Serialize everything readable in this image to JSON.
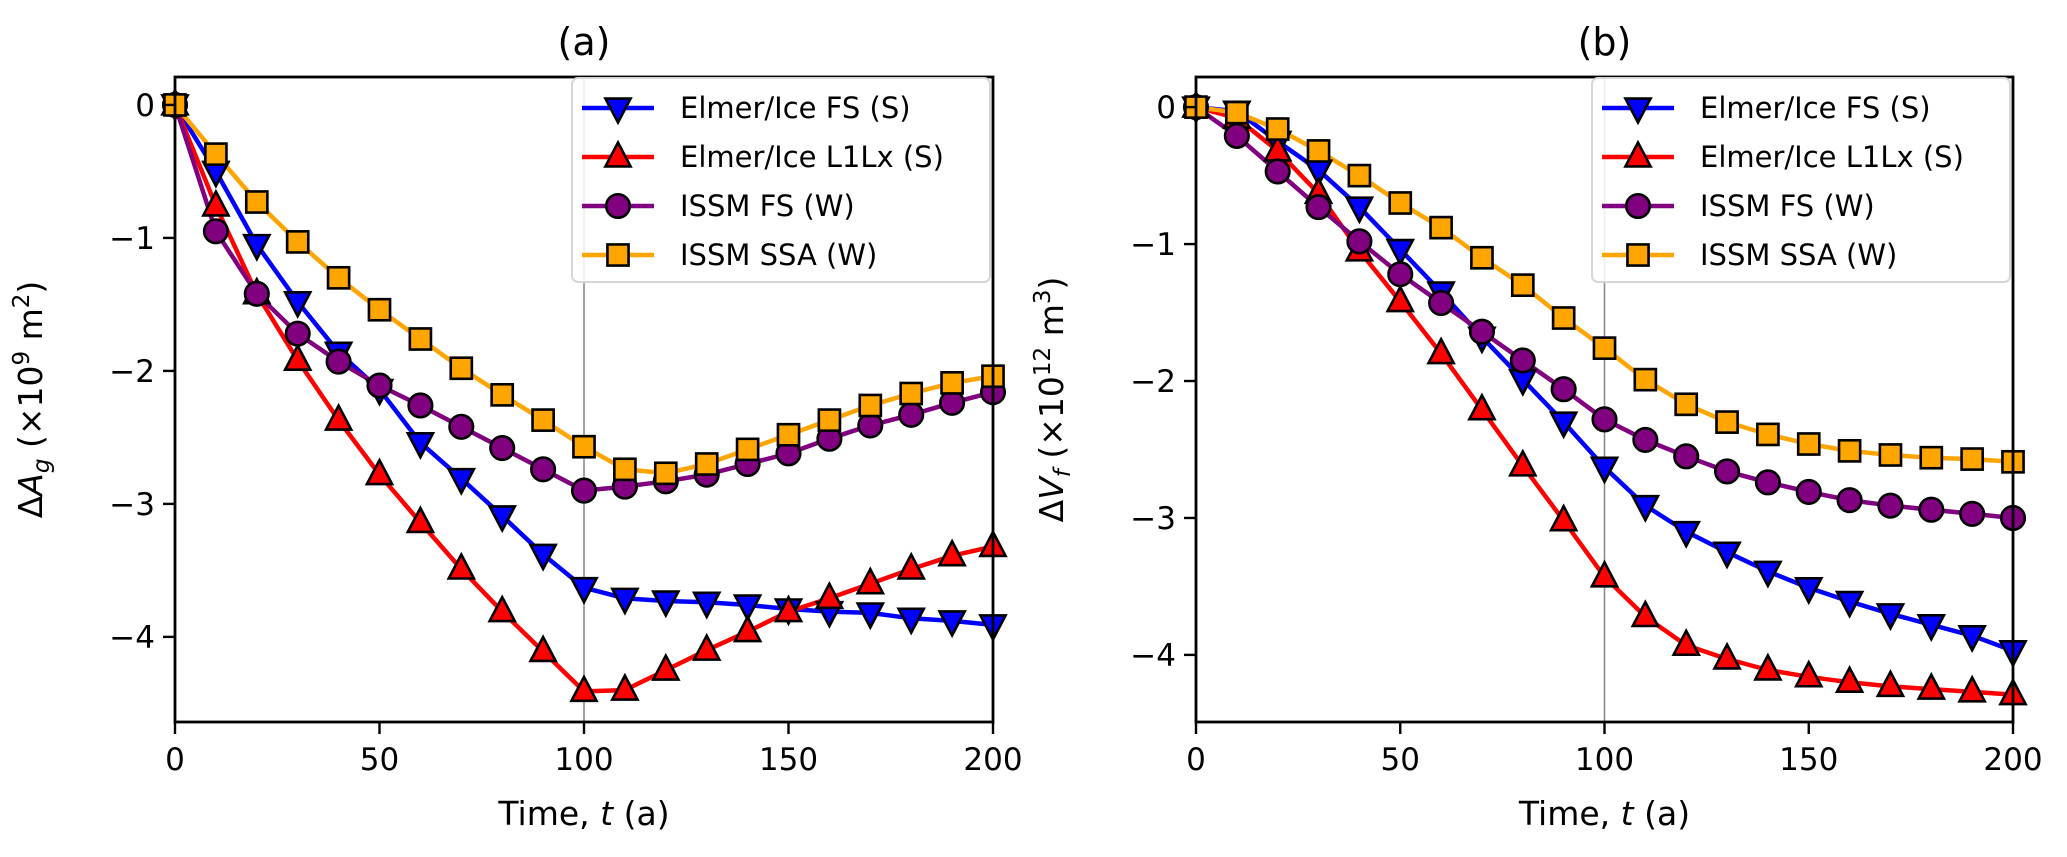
{
  "chart_data": [
    {
      "type": "line",
      "title": "(a)",
      "xlabel": "Time, t (a)",
      "xlabel_parts": [
        "Time, ",
        "t",
        " (a)"
      ],
      "ylabel": "ΔA_g (×10^9 m^2)",
      "ylabel_parts": {
        "delta": "Δ",
        "var": "A",
        "sub": "g",
        "pre": " (×10",
        "exp": "9",
        "unit": " m",
        "unit_exp": "2",
        "post": ")"
      },
      "xlim": [
        0,
        200
      ],
      "ylim": [
        -4.64,
        0.21
      ],
      "xticks": [
        0,
        50,
        100,
        150,
        200
      ],
      "yticks": [
        0,
        -1,
        -2,
        -3,
        -4
      ],
      "grid": false,
      "vline_x": 100,
      "legend_position": "top-right",
      "x": [
        0,
        10,
        20,
        30,
        40,
        50,
        60,
        70,
        80,
        90,
        100,
        110,
        120,
        130,
        140,
        150,
        160,
        170,
        180,
        190,
        200
      ],
      "series": [
        {
          "name": "Elmer/Ice FS (S)",
          "color": "#0000ff",
          "marker": "triangle-down",
          "values": [
            0,
            -0.5,
            -1.05,
            -1.48,
            -1.86,
            -2.14,
            -2.54,
            -2.81,
            -3.09,
            -3.38,
            -3.63,
            -3.71,
            -3.73,
            -3.74,
            -3.76,
            -3.79,
            -3.81,
            -3.82,
            -3.86,
            -3.88,
            -3.91
          ]
        },
        {
          "name": "Elmer/Ice L1Lx (S)",
          "color": "#ff0000",
          "marker": "triangle-up",
          "values": [
            0,
            -0.76,
            -1.42,
            -1.92,
            -2.37,
            -2.78,
            -3.14,
            -3.49,
            -3.81,
            -4.11,
            -4.41,
            -4.4,
            -4.25,
            -4.1,
            -3.96,
            -3.81,
            -3.71,
            -3.6,
            -3.49,
            -3.39,
            -3.32
          ]
        },
        {
          "name": "ISSM FS (W)",
          "color": "#800080",
          "marker": "circle",
          "values": [
            0,
            -0.95,
            -1.42,
            -1.72,
            -1.93,
            -2.11,
            -2.26,
            -2.42,
            -2.58,
            -2.74,
            -2.9,
            -2.87,
            -2.83,
            -2.78,
            -2.7,
            -2.62,
            -2.51,
            -2.41,
            -2.33,
            -2.24,
            -2.16
          ]
        },
        {
          "name": "ISSM SSA (W)",
          "color": "#ffa500",
          "marker": "square",
          "values": [
            0,
            -0.37,
            -0.73,
            -1.03,
            -1.3,
            -1.54,
            -1.76,
            -1.98,
            -2.18,
            -2.37,
            -2.57,
            -2.74,
            -2.77,
            -2.7,
            -2.59,
            -2.48,
            -2.37,
            -2.26,
            -2.17,
            -2.09,
            -2.04
          ]
        }
      ]
    },
    {
      "type": "line",
      "title": "(b)",
      "xlabel": "Time, t (a)",
      "xlabel_parts": [
        "Time, ",
        "t",
        " (a)"
      ],
      "ylabel": "ΔV_f (×10^12 m^3)",
      "ylabel_parts": {
        "delta": "Δ",
        "var": "V",
        "sub": "f",
        "pre": " (×10",
        "exp": "12",
        "unit": " m",
        "unit_exp": "3",
        "post": ")"
      },
      "xlim": [
        0,
        200
      ],
      "ylim": [
        -4.49,
        0.22
      ],
      "xticks": [
        0,
        50,
        100,
        150,
        200
      ],
      "yticks": [
        0,
        -1,
        -2,
        -3,
        -4
      ],
      "grid": false,
      "vline_x": 100,
      "legend_position": "top-right",
      "x": [
        0,
        10,
        20,
        30,
        40,
        50,
        60,
        70,
        80,
        90,
        100,
        110,
        120,
        130,
        140,
        150,
        160,
        170,
        180,
        190,
        200
      ],
      "series": [
        {
          "name": "Elmer/Ice FS (S)",
          "color": "#0000ff",
          "marker": "triangle-down",
          "values": [
            0,
            -0.03,
            -0.25,
            -0.46,
            -0.73,
            -1.04,
            -1.35,
            -1.68,
            -1.99,
            -2.3,
            -2.63,
            -2.91,
            -3.1,
            -3.25,
            -3.39,
            -3.51,
            -3.61,
            -3.7,
            -3.78,
            -3.86,
            -3.97
          ]
        },
        {
          "name": "Elmer/Ice L1Lx (S)",
          "color": "#ff0000",
          "marker": "triangle-up",
          "values": [
            0,
            -0.08,
            -0.32,
            -0.63,
            -1.05,
            -1.42,
            -1.8,
            -2.21,
            -2.62,
            -3.02,
            -3.43,
            -3.72,
            -3.93,
            -4.03,
            -4.11,
            -4.16,
            -4.2,
            -4.23,
            -4.25,
            -4.27,
            -4.29
          ]
        },
        {
          "name": "ISSM FS (W)",
          "color": "#800080",
          "marker": "circle",
          "values": [
            0,
            -0.21,
            -0.47,
            -0.73,
            -0.98,
            -1.22,
            -1.43,
            -1.64,
            -1.85,
            -2.06,
            -2.28,
            -2.43,
            -2.55,
            -2.66,
            -2.74,
            -2.81,
            -2.87,
            -2.91,
            -2.94,
            -2.97,
            -3.0
          ]
        },
        {
          "name": "ISSM SSA (W)",
          "color": "#ffa500",
          "marker": "square",
          "values": [
            0,
            -0.04,
            -0.16,
            -0.32,
            -0.5,
            -0.7,
            -0.88,
            -1.1,
            -1.3,
            -1.54,
            -1.76,
            -1.99,
            -2.17,
            -2.3,
            -2.39,
            -2.46,
            -2.51,
            -2.54,
            -2.56,
            -2.57,
            -2.59
          ]
        }
      ]
    }
  ]
}
